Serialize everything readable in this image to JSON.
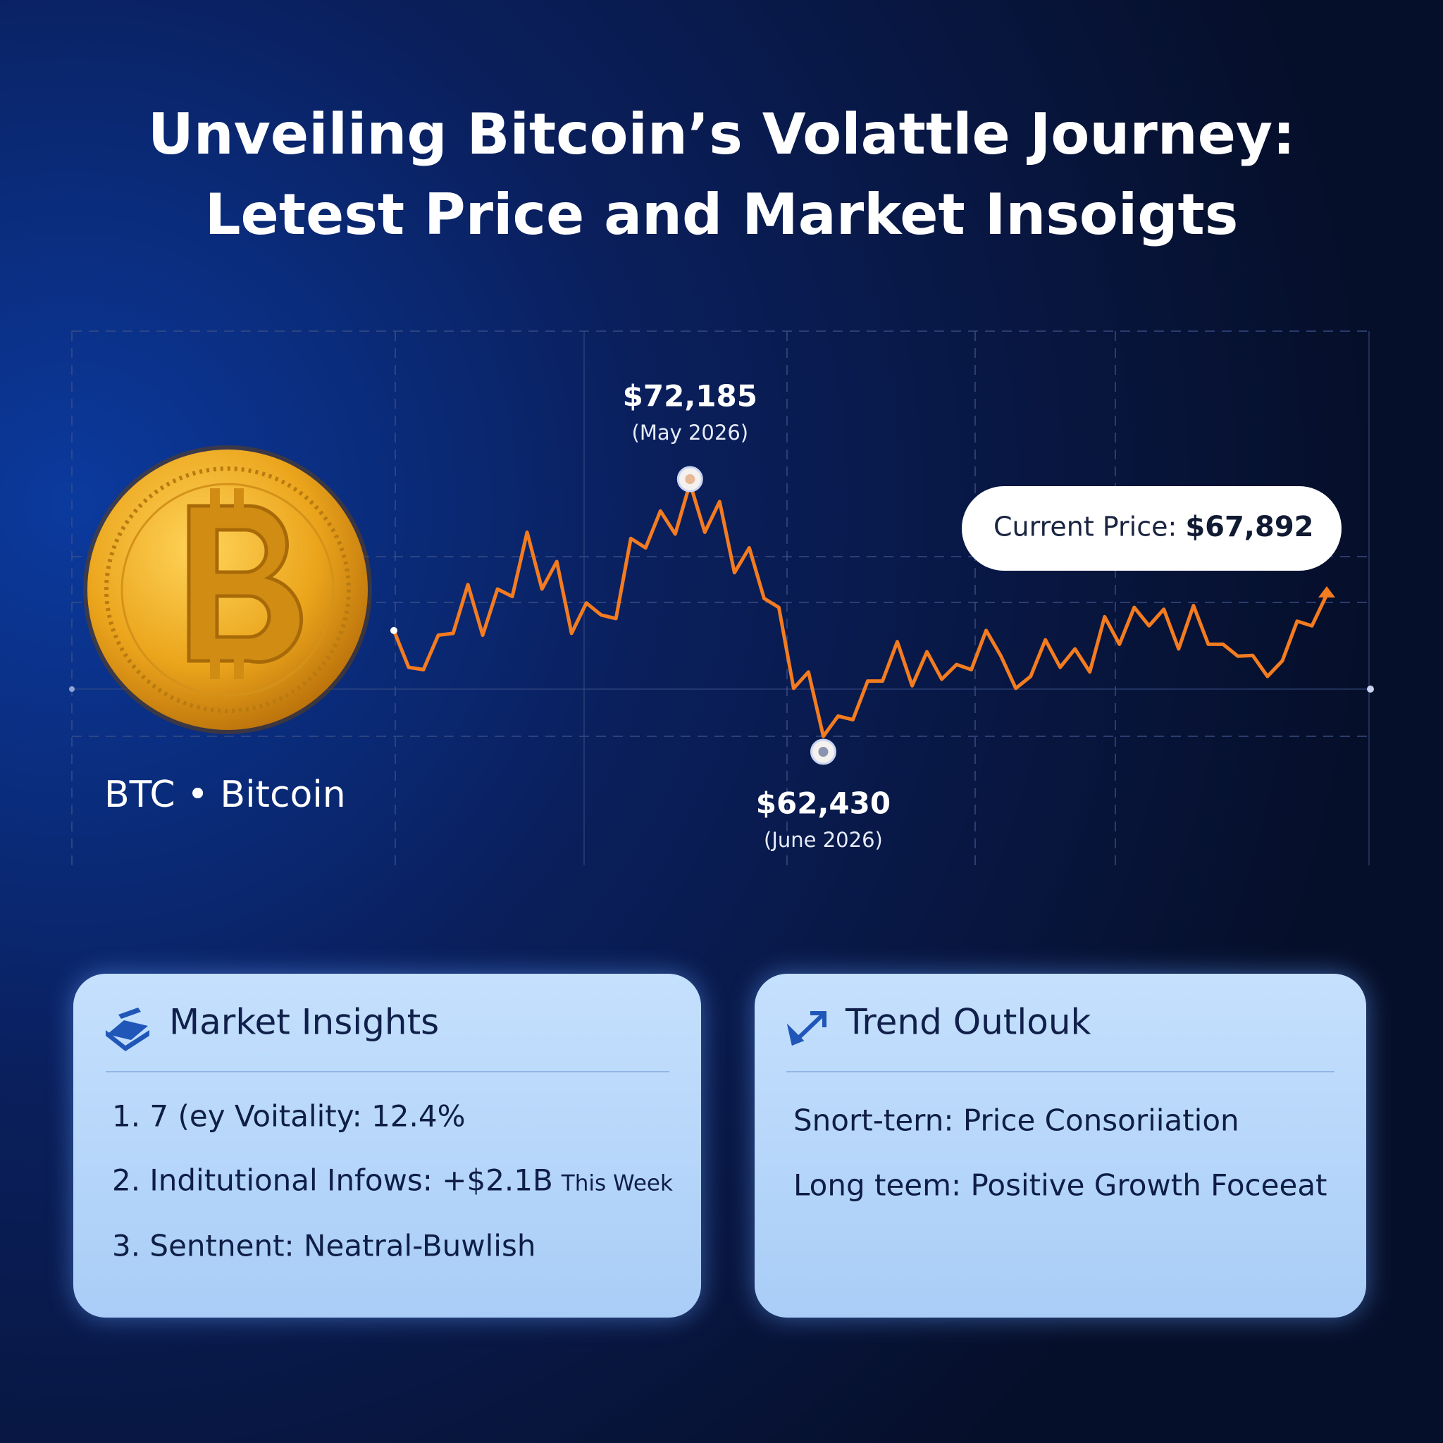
{
  "header": {
    "title_line1": "Unveiling Bitcoin’s Volattle Journey:",
    "title_line2": "Letest Price and Market Insoigts"
  },
  "coin": {
    "label": "BTC • Bitcoin"
  },
  "chart_data": {
    "type": "line",
    "color": "#f47c20",
    "values": [
      66510,
      65090,
      65000,
      66330,
      66400,
      68280,
      66330,
      68110,
      67820,
      70300,
      68110,
      69170,
      66400,
      67570,
      67110,
      66970,
      70060,
      69700,
      71120,
      70230,
      72185,
      70300,
      71480,
      68740,
      69700,
      67750,
      67400,
      64280,
      64910,
      62430,
      63210,
      63070,
      64560,
      64560,
      66080,
      64380,
      65690,
      64630,
      65200,
      65000,
      66510,
      65520,
      64280,
      64740,
      66150,
      65090,
      65800,
      64910,
      67040,
      65980,
      67400,
      66690,
      67330,
      65800,
      67470,
      65980,
      65980,
      65520,
      65550,
      64740,
      65340,
      66870,
      66690,
      67892
    ],
    "annotations": [
      {
        "value": 72185,
        "label": "$72,185",
        "note": "(May 2026)"
      },
      {
        "value": 62430,
        "label": "$62,430",
        "note": "(June 2026)"
      }
    ],
    "current_price": {
      "label": "Current Price:",
      "value": 67892,
      "value_label": "$67,892"
    }
  },
  "cards": [
    {
      "title": "Market Insights",
      "items": [
        {
          "text": "1. 7 (ey Voitality: 12.4%"
        },
        {
          "text": "2. Inditutional Infows: +$2.1B",
          "suffix": "This Week"
        },
        {
          "text": "3. Sentnent: Neatral-Buwlish"
        }
      ]
    },
    {
      "title": "Trend Outlouk",
      "items": [
        {
          "text": "Snort-tern:  Price Consoriiation"
        },
        {
          "text": "Long teem: Positive Growth Foceeat"
        }
      ]
    }
  ]
}
